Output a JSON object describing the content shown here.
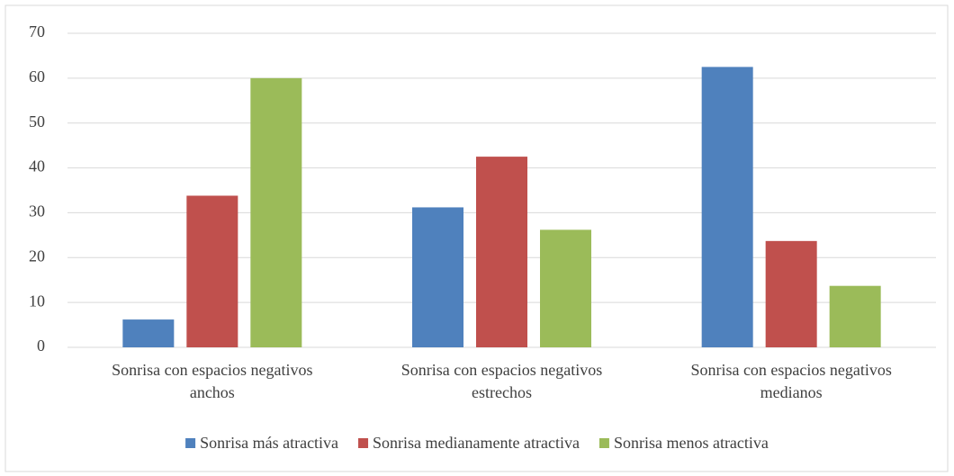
{
  "chart_data": {
    "type": "bar",
    "categories": [
      "Sonrisa con espacios negativos anchos",
      "Sonrisa con espacios negativos estrechos",
      "Sonrisa con espacios negativos medianos"
    ],
    "series": [
      {
        "name": "Sonrisa más atractiva",
        "color": "#4f81bd",
        "values": [
          6.2,
          31.2,
          62.5
        ]
      },
      {
        "name": "Sonrisa medianamente atractiva",
        "color": "#c0504d",
        "values": [
          33.8,
          42.5,
          23.7
        ]
      },
      {
        "name": "Sonrisa menos atractiva",
        "color": "#9bbb59",
        "values": [
          60,
          26.2,
          13.7
        ]
      }
    ],
    "ylim": [
      0,
      70
    ],
    "yticks": [
      0,
      10,
      20,
      30,
      40,
      50,
      60,
      70
    ],
    "grid": true,
    "legend": "bottom"
  }
}
